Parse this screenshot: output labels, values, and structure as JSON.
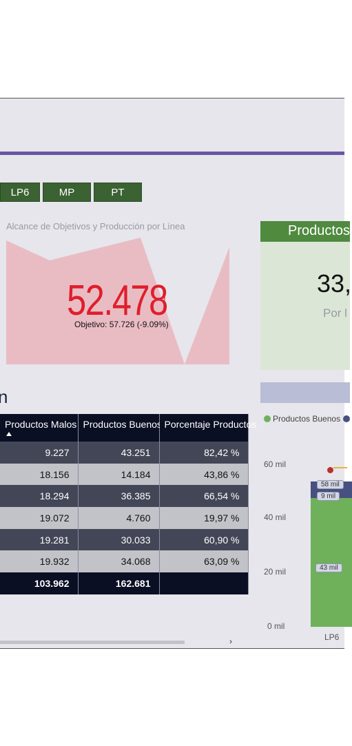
{
  "filters": {
    "tabs": [
      {
        "label": "LP6"
      },
      {
        "label": "MP"
      },
      {
        "label": "PT"
      }
    ]
  },
  "kpi": {
    "title": "Alcance de Objetivos y Producción por Línea",
    "value": "52.478",
    "value_suffix": "!",
    "goal": "Objetivo: 57.726 (-9.09%)",
    "area_color": "#e9bcc4",
    "value_color": "#e01e2b"
  },
  "card": {
    "header": "Productos",
    "value": "33,",
    "sub": "Por l"
  },
  "section": {
    "title_fragment": "n"
  },
  "table": {
    "columns": [
      "Productos Malos",
      "Productos Buenos",
      "Porcentaje Productos"
    ],
    "rows": [
      [
        "9.227",
        "43.251",
        "82,42 %"
      ],
      [
        "18.156",
        "14.184",
        "43,86 %"
      ],
      [
        "18.294",
        "36.385",
        "66,54 %"
      ],
      [
        "19.072",
        "4.760",
        "19,97 %"
      ],
      [
        "19.281",
        "30.033",
        "60,90 %"
      ],
      [
        "19.932",
        "34.068",
        "63,09 %"
      ]
    ],
    "total": [
      "103.962",
      "162.681",
      ""
    ],
    "scroll_arrow": "›"
  },
  "chart": {
    "legend": [
      {
        "label": "Productos Buenos",
        "color": "#6fb05b"
      },
      {
        "label": "",
        "color": "#47507e"
      }
    ],
    "y_ticks": [
      "60 mil",
      "40 mil",
      "20 mil",
      "0 mil"
    ],
    "labels": {
      "blue_top": "58 mil",
      "blue": "9 mil",
      "green": "43 mil"
    },
    "category": "LP6"
  },
  "chart_data": {
    "type": "bar",
    "categories": [
      "LP6"
    ],
    "series": [
      {
        "name": "Productos Buenos",
        "values": [
          43
        ]
      },
      {
        "values": [
          9
        ]
      }
    ],
    "ylim": [
      0,
      60
    ],
    "annotations": [
      "58 mil"
    ]
  }
}
